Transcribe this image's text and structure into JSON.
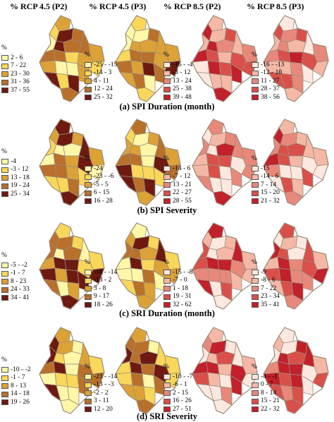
{
  "column_headers": [
    "% RCP 4.5 (P2)",
    "% RCP 4.5 (P3)",
    "% RCP 8.5 (P2)",
    "% RCP 8.5 (P3)"
  ],
  "legend_unit": "%",
  "rows": [
    {
      "caption": "(a)  SPI Duration (month)",
      "legends": [
        [
          "2 - 6",
          "7 - 22",
          "23 - 30",
          "31 - 36",
          "37 - 55"
        ],
        [
          "-25 - -15",
          "-14 - 3",
          "4 - 11",
          "12 - 24",
          "25 - 32"
        ],
        [
          "-16 - -4",
          "-3 - 12",
          "13 - 24",
          "25 - 38",
          "39 - 48"
        ],
        [
          "-16 - -13",
          "-12 - 10",
          "11 - 27",
          "28 - 37",
          "38 - 56"
        ]
      ]
    },
    {
      "caption": "(b)  SPI Severity",
      "legends": [
        [
          "-4",
          "-3 - 12",
          "13 - 18",
          "19 - 24",
          "25 - 34"
        ],
        [
          "-24",
          "-23 - -6",
          "-5 - 5",
          "6 - 15",
          "16 - 28"
        ],
        [
          "-14 - 6",
          "-7 - 12",
          "13 - 21",
          "22 - 27",
          "28 - 55"
        ],
        [
          "-15",
          "-14 - 6",
          "7 - 14",
          "15 - 20",
          "21 - 32"
        ]
      ]
    },
    {
      "caption": "(c)  SRI Duration (month)",
      "legends": [
        [
          "-5 - -2",
          "-1 - 7",
          "8 - 23",
          "24 - 33",
          "34 - 41"
        ],
        [
          "-18 - -14",
          "-13 - 2",
          "3 - 8",
          "9 - 17",
          "18 - 26"
        ],
        [
          "-15 - -8",
          "-7 - 0",
          "1 - 18",
          "19 - 31",
          "32 - 62"
        ],
        [
          "-9",
          "-8 - 6",
          "7 - 22",
          "23 - 34",
          "35 - 41"
        ]
      ]
    },
    {
      "caption": "(d)  SRI Severity",
      "legends": [
        [
          "-10 - -2",
          "-1 - 7",
          "8 - 13",
          "14 - 18",
          "19 - 26"
        ],
        [
          "-23 - -14",
          "-13 - -3",
          "-2 - 2",
          "3 - 11",
          "12 - 20"
        ],
        [
          "-10 - -7",
          "-6 - 1",
          "2 - 15",
          "16 - 26",
          "27 - 51"
        ],
        [
          "-4 - -1",
          "0 - 7",
          "8 - 14",
          "15 - 21",
          "22 - 32"
        ]
      ]
    }
  ],
  "colors": {
    "yellow_scale": [
      "#fff7a8",
      "#f9d75a",
      "#dca236",
      "#b9702a",
      "#6e1a10"
    ],
    "red_scale": [
      "#fde8df",
      "#f5b8a6",
      "#e8887a",
      "#d9504a",
      "#c2202a"
    ],
    "map_outline": "#9b8d7e"
  }
}
